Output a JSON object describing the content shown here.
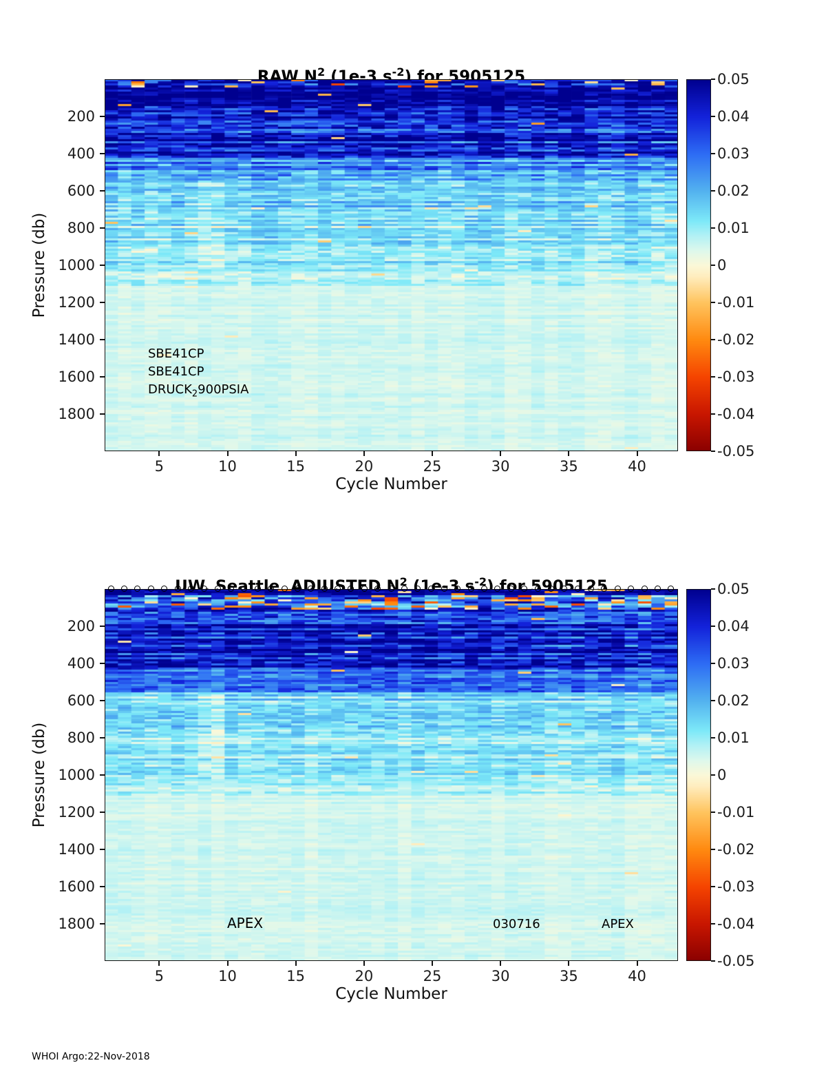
{
  "footer": {
    "text": "WHOI Argo:22-Nov-2018"
  },
  "colorbar": {
    "ticks": [
      "0.05",
      "0.04",
      "0.03",
      "0.02",
      "0.01",
      "0",
      "-0.01",
      "-0.02",
      "-0.03",
      "-0.04",
      "-0.05"
    ],
    "range": [
      -0.05,
      0.05
    ]
  },
  "colormap": {
    "stops": [
      {
        "v": -0.05,
        "color": "#8a0000"
      },
      {
        "v": -0.04,
        "color": "#c81600"
      },
      {
        "v": -0.03,
        "color": "#f54400"
      },
      {
        "v": -0.02,
        "color": "#ff8a10"
      },
      {
        "v": -0.01,
        "color": "#ffc45e"
      },
      {
        "v": -0.003,
        "color": "#ffedbe"
      },
      {
        "v": 0.0,
        "color": "#fbf8d8"
      },
      {
        "v": 0.004,
        "color": "#def8ec"
      },
      {
        "v": 0.008,
        "color": "#b2f1f5"
      },
      {
        "v": 0.012,
        "color": "#7de9f8"
      },
      {
        "v": 0.02,
        "color": "#53b2ef"
      },
      {
        "v": 0.03,
        "color": "#2d6cf4"
      },
      {
        "v": 0.04,
        "color": "#1322da"
      },
      {
        "v": 0.05,
        "color": "#00008f"
      }
    ]
  },
  "chart_data": [
    {
      "type": "heatmap",
      "title_parts": {
        "p1": "RAW N",
        "s1": "2",
        "p2": " (1e-3 s",
        "s2": "-2",
        "p3": ") for 5905125"
      },
      "x": {
        "label": "Cycle Number",
        "ticks": [
          5,
          10,
          15,
          20,
          25,
          30,
          35,
          40
        ],
        "range": [
          1,
          43
        ]
      },
      "y": {
        "label": "Pressure (db)",
        "ticks": [
          200,
          400,
          600,
          800,
          1000,
          1200,
          1400,
          1600,
          1800
        ],
        "range": [
          0,
          2000
        ],
        "direction": "down"
      },
      "value_units": "1e-3 s^-2",
      "value_range": [
        -0.05,
        0.05
      ],
      "annotations": [
        {
          "text": "SBE41CP"
        },
        {
          "text": "SBE41CP"
        },
        {
          "prefix": "DRUCK",
          "sub": "2",
          "suffix": "900PSIA"
        }
      ],
      "heatmap": {
        "cycles": 43,
        "surface_markers": false,
        "bands": [
          {
            "p0": 0,
            "p1": 45,
            "base": 0.044,
            "row_amp": 0.008,
            "cell_amp": 0.015,
            "col_amp": 0.004,
            "neg_prob": 0.16,
            "neg_scale": 0.035
          },
          {
            "p0": 45,
            "p1": 150,
            "base": 0.05,
            "row_amp": 0.004,
            "cell_amp": 0.01,
            "col_amp": 0.002,
            "neg_prob": 0.015,
            "neg_scale": 0.02
          },
          {
            "p0": 150,
            "p1": 420,
            "base": 0.042,
            "row_amp": 0.013,
            "cell_amp": 0.012,
            "col_amp": 0.003,
            "neg_prob": 0.003,
            "neg_scale": 0.02
          },
          {
            "p0": 420,
            "p1": 560,
            "base": 0.024,
            "row_amp": 0.009,
            "cell_amp": 0.008,
            "col_amp": 0.003,
            "neg_prob": 0.004,
            "neg_scale": 0.015
          },
          {
            "p0": 560,
            "p1": 790,
            "base": 0.0145,
            "row_amp": 0.006,
            "cell_amp": 0.006,
            "col_amp": 0.002,
            "neg_prob": 0.006,
            "neg_scale": 0.012
          },
          {
            "p0": 790,
            "p1": 1010,
            "base": 0.0115,
            "row_amp": 0.005,
            "cell_amp": 0.005,
            "col_amp": 0.002,
            "neg_prob": 0.005,
            "neg_scale": 0.01
          },
          {
            "p0": 1010,
            "p1": 1110,
            "base": 0.008,
            "row_amp": 0.004,
            "cell_amp": 0.004,
            "col_amp": 0.002,
            "neg_prob": 0.003,
            "neg_scale": 0.008
          },
          {
            "p0": 1110,
            "p1": 2000,
            "base": 0.005,
            "row_amp": 0.0013,
            "cell_amp": 0.0015,
            "col_amp": 0.001,
            "neg_prob": 0.0015,
            "neg_scale": 0.008
          }
        ],
        "column_features": [
          {
            "c0": 8,
            "c1": 9,
            "p0": 520,
            "p1": 1010,
            "delta": -0.005
          }
        ]
      }
    },
    {
      "type": "heatmap",
      "title_parts": {
        "p1": "UW, Seattle  ADJUSTED N",
        "s1": "2",
        "p2": " (1e-3 s",
        "s2": "-2",
        "p3": ") for 5905125"
      },
      "x": {
        "label": "Cycle Number",
        "ticks": [
          5,
          10,
          15,
          20,
          25,
          30,
          35,
          40
        ],
        "range": [
          1,
          43
        ]
      },
      "y": {
        "label": "Pressure (db)",
        "ticks": [
          200,
          400,
          600,
          800,
          1000,
          1200,
          1400,
          1600,
          1800
        ],
        "range": [
          0,
          2000
        ],
        "direction": "down"
      },
      "value_units": "1e-3 s^-2",
      "value_range": [
        -0.05,
        0.05
      ],
      "annotations": [
        {
          "text": "APEX"
        },
        {
          "text": "030716"
        },
        {
          "text": "APEX"
        }
      ],
      "heatmap": {
        "cycles": 43,
        "surface_markers": true,
        "bands": [
          {
            "p0": 0,
            "p1": 30,
            "base": 0.05,
            "row_amp": 0.003,
            "cell_amp": 0.008,
            "col_amp": 0.002,
            "neg_prob": 0.06,
            "neg_scale": 0.03
          },
          {
            "p0": 30,
            "p1": 115,
            "base": 0.034,
            "row_amp": 0.01,
            "cell_amp": 0.018,
            "col_amp": 0.004,
            "neg_prob": 0.2,
            "neg_scale": 0.03
          },
          {
            "p0": 115,
            "p1": 430,
            "base": 0.042,
            "row_amp": 0.012,
            "cell_amp": 0.012,
            "col_amp": 0.003,
            "neg_prob": 0.004,
            "neg_scale": 0.02
          },
          {
            "p0": 430,
            "p1": 560,
            "base": 0.024,
            "row_amp": 0.009,
            "cell_amp": 0.008,
            "col_amp": 0.003,
            "neg_prob": 0.004,
            "neg_scale": 0.015
          },
          {
            "p0": 560,
            "p1": 790,
            "base": 0.0145,
            "row_amp": 0.006,
            "cell_amp": 0.006,
            "col_amp": 0.002,
            "neg_prob": 0.006,
            "neg_scale": 0.012
          },
          {
            "p0": 790,
            "p1": 1010,
            "base": 0.0115,
            "row_amp": 0.005,
            "cell_amp": 0.005,
            "col_amp": 0.002,
            "neg_prob": 0.005,
            "neg_scale": 0.01
          },
          {
            "p0": 1010,
            "p1": 1110,
            "base": 0.008,
            "row_amp": 0.004,
            "cell_amp": 0.004,
            "col_amp": 0.002,
            "neg_prob": 0.003,
            "neg_scale": 0.008
          },
          {
            "p0": 1110,
            "p1": 2000,
            "base": 0.005,
            "row_amp": 0.0013,
            "cell_amp": 0.0015,
            "col_amp": 0.001,
            "neg_prob": 0.0015,
            "neg_scale": 0.008
          }
        ],
        "column_features": [
          {
            "c0": 8,
            "c1": 9,
            "p0": 520,
            "p1": 1010,
            "delta": -0.005
          }
        ]
      }
    }
  ]
}
